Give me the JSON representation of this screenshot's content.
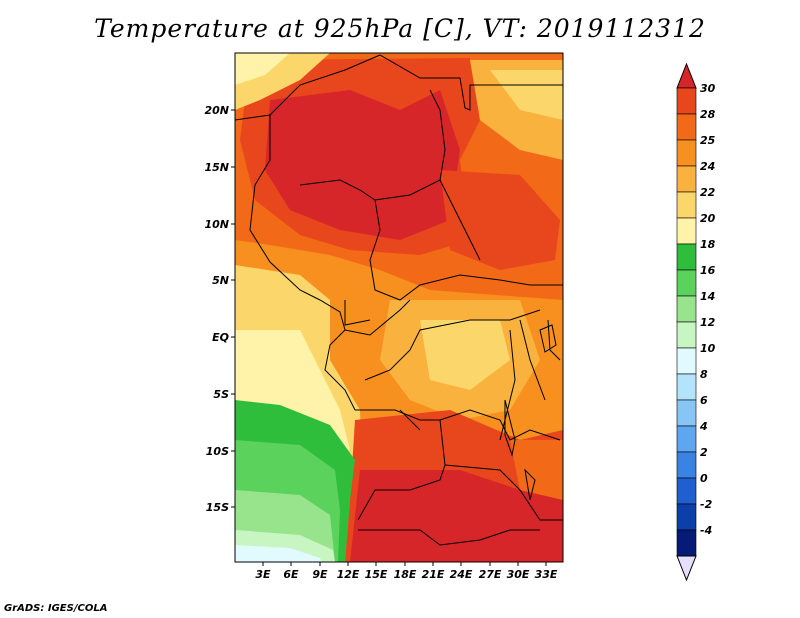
{
  "title": "Temperature at 925hPa [C], VT: 2019112312",
  "footer": "GrADS: IGES/COLA",
  "lat_ticks": [
    "20N",
    "15N",
    "10N",
    "5N",
    "EQ",
    "5S",
    "10S",
    "15S"
  ],
  "lon_ticks": [
    "3E",
    "6E",
    "9E",
    "12E",
    "15E",
    "18E",
    "21E",
    "24E",
    "27E",
    "30E",
    "33E"
  ],
  "colorbar": {
    "labels": [
      "30",
      "28",
      "25",
      "24",
      "22",
      "20",
      "18",
      "16",
      "14",
      "12",
      "10",
      "8",
      "6",
      "4",
      "2",
      "0",
      "-2",
      "-4"
    ],
    "colors": [
      "#d7262a",
      "#e8461c",
      "#f26a17",
      "#f7901e",
      "#fab23e",
      "#fbd66a",
      "#fef3a8",
      "#2fbe3c",
      "#5ad25c",
      "#97e48c",
      "#c8f6c2",
      "#e0fafd",
      "#b4e4fb",
      "#87c5f5",
      "#5ea6ef",
      "#3a83e5",
      "#1f5fd2",
      "#0c3fa9",
      "#061a78",
      "#e6defa"
    ]
  }
}
